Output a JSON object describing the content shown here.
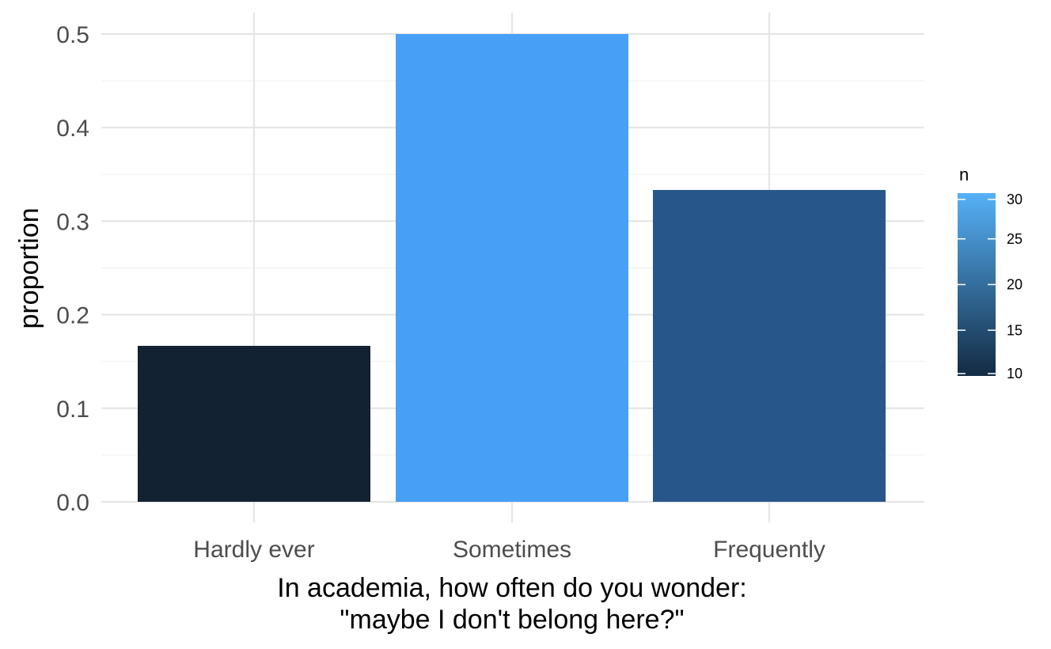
{
  "chart_data": {
    "type": "bar",
    "categories": [
      "Hardly ever",
      "Sometimes",
      "Frequently"
    ],
    "values": [
      0.1667,
      0.5,
      0.3333
    ],
    "fill_by_n": [
      10,
      30,
      20
    ],
    "ylabel": "proportion",
    "xlabel_lines": [
      "In academia, how often do you wonder:",
      "\"maybe I don't belong here?\""
    ],
    "ylim": [
      0,
      0.5
    ],
    "y_ticks": [
      "0.0",
      "0.1",
      "0.2",
      "0.3",
      "0.4",
      "0.5"
    ],
    "y_tick_values": [
      0,
      0.1,
      0.2,
      0.3,
      0.4,
      0.5
    ],
    "grid": true,
    "legend": {
      "title": "n",
      "position": "right",
      "type": "continuous-colorbar",
      "range": [
        10,
        30
      ],
      "ticks": [
        "10",
        "15",
        "20",
        "25",
        "30"
      ],
      "tick_values": [
        10,
        15,
        20,
        25,
        30
      ],
      "color_low": "#132B43",
      "color_high": "#56B1F7"
    },
    "bar_colors": [
      "#132233",
      "#48A0F6",
      "#27578A"
    ]
  }
}
